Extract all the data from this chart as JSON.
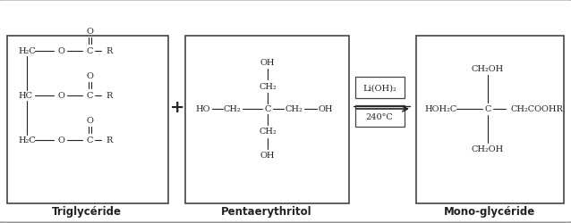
{
  "background_color": "#ffffff",
  "box_line_color": "#555555",
  "text_color": "#222222",
  "label_triglyceride": "Triglycéride",
  "label_pentaerythritol": "Pentaerythritol",
  "label_monoglyceride": "Mono-glycéride",
  "reaction_top": "Li(OH)₂",
  "reaction_bottom": "240°C",
  "figsize": [
    6.38,
    2.51
  ],
  "dpi": 100
}
